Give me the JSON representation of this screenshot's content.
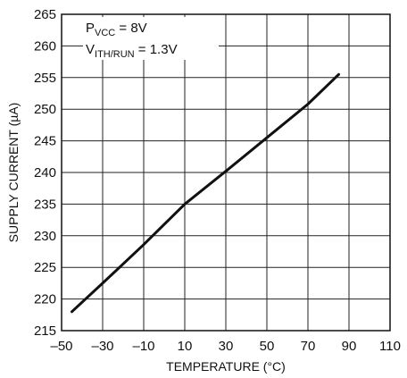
{
  "chart_data": {
    "type": "line",
    "title": "",
    "xlabel": "TEMPERATURE (°C)",
    "ylabel": "SUPPLY CURRENT (µA)",
    "xlim": [
      -50,
      110
    ],
    "ylim": [
      215,
      265
    ],
    "xticks": [
      -50,
      -30,
      -10,
      10,
      30,
      50,
      70,
      90,
      110
    ],
    "xtick_labels": [
      "–50",
      "–30",
      "–10",
      "10",
      "30",
      "50",
      "70",
      "90",
      "110"
    ],
    "yticks": [
      215,
      220,
      225,
      230,
      235,
      240,
      245,
      250,
      255,
      260,
      265
    ],
    "grid": true,
    "annotations": [
      {
        "main": "P",
        "sub": "VCC",
        "rest": " = 8V"
      },
      {
        "main": "V",
        "sub": "ITH/RUN",
        "rest": " = 1.3V"
      }
    ],
    "series": [
      {
        "x": [
          -45,
          -30,
          -10,
          10,
          30,
          50,
          70,
          85
        ],
        "y": [
          218,
          222.5,
          228.6,
          235,
          240.2,
          245.5,
          250.8,
          255.5
        ]
      }
    ]
  }
}
